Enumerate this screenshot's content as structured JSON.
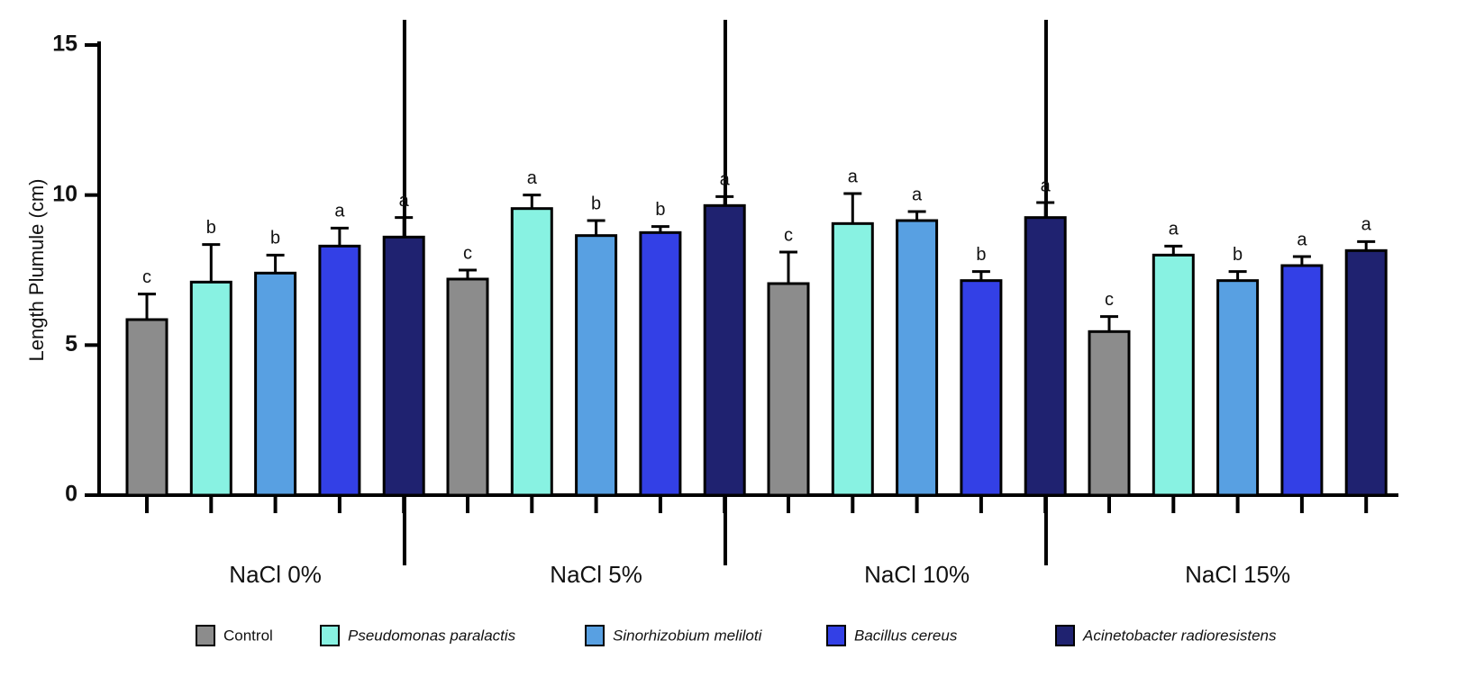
{
  "chart_data": {
    "type": "bar",
    "y_label": "Length Plumule  (cm)",
    "categories": [
      "NaCl 0%",
      "NaCl 5%",
      "NaCl 10%",
      "NaCl 15%"
    ],
    "ylim": [
      0,
      15
    ],
    "yticks": [
      0,
      5,
      10,
      15
    ],
    "grid": false,
    "series": [
      {
        "name": "Control",
        "color": "#8c8c8c",
        "values": [
          5.85,
          7.2,
          7.05,
          5.45
        ],
        "errors": [
          0.85,
          0.3,
          1.05,
          0.5
        ],
        "labels": [
          "c",
          "c",
          "c",
          "c"
        ]
      },
      {
        "name": "Pseudomonas paralactis",
        "color": "#88f2e2",
        "values": [
          7.1,
          9.55,
          9.05,
          8.0
        ],
        "errors": [
          1.25,
          0.45,
          1.0,
          0.3
        ],
        "labels": [
          "b",
          "a",
          "a",
          "a"
        ]
      },
      {
        "name": "Sinorhizobium meliloti",
        "color": "#58a0e2",
        "values": [
          7.4,
          8.65,
          9.15,
          7.15
        ],
        "errors": [
          0.6,
          0.5,
          0.3,
          0.3
        ],
        "labels": [
          "b",
          "b",
          "a",
          "b"
        ]
      },
      {
        "name": "Bacillus cereus",
        "color": "#3340e6",
        "values": [
          8.3,
          8.75,
          7.15,
          7.65
        ],
        "errors": [
          0.6,
          0.2,
          0.3,
          0.3
        ],
        "labels": [
          "a",
          "b",
          "b",
          "a"
        ]
      },
      {
        "name": "Acinetobacter radioresistens",
        "color": "#1f2270",
        "values": [
          8.6,
          9.65,
          9.25,
          8.15
        ],
        "errors": [
          0.65,
          0.3,
          0.5,
          0.3
        ],
        "labels": [
          "a",
          "a",
          "a",
          "a"
        ]
      }
    ]
  }
}
